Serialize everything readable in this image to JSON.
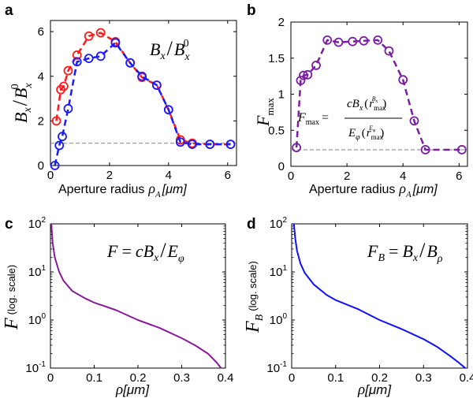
{
  "chart_data": [
    {
      "panel": "a",
      "type": "line",
      "title": "B_x / B_x^0",
      "xlabel": "Aperture radius ρ_A [μm]",
      "ylabel": "B_x / B_x^0",
      "xlim": [
        0,
        6.3
      ],
      "ylim": [
        0,
        6.5
      ],
      "xticks": [
        "0",
        "2",
        "4",
        "6"
      ],
      "xtick_values": [
        0,
        2,
        4,
        6
      ],
      "yticks": [
        "0",
        "2",
        "4",
        "6"
      ],
      "ytick_values": [
        0,
        2,
        4,
        6
      ],
      "reference_line": {
        "y": 1.0,
        "style": "dashed",
        "color": "#808080"
      },
      "series": [
        {
          "name": "red",
          "color": "#ff1a1a",
          "x": [
            0.2,
            0.35,
            0.45,
            0.6,
            0.9,
            1.3,
            1.7,
            2.2,
            2.7,
            3.1,
            3.6,
            4.0,
            4.4,
            4.8,
            5.4,
            6.1
          ],
          "y": [
            2.0,
            3.4,
            3.55,
            4.25,
            4.95,
            5.8,
            5.95,
            5.55,
            4.6,
            3.95,
            3.6,
            2.5,
            1.15,
            1.0,
            0.95,
            0.95
          ]
        },
        {
          "name": "blue",
          "color": "#1a1aff",
          "x": [
            0.15,
            0.3,
            0.4,
            0.6,
            0.9,
            1.3,
            1.7,
            2.2,
            2.7,
            3.1,
            3.6,
            4.0,
            4.4,
            4.8,
            5.4,
            6.1
          ],
          "y": [
            0.0,
            0.9,
            1.3,
            2.55,
            4.65,
            4.8,
            4.9,
            5.5,
            4.6,
            4.0,
            3.6,
            2.5,
            1.05,
            0.95,
            0.95,
            0.95
          ]
        }
      ]
    },
    {
      "panel": "b",
      "type": "line",
      "ylabel": "F_max",
      "xlabel": "Aperture radius ρ_A [μm]",
      "formula": "F_max = c B_x(r_max^{B_x}) / E_φ(r_max^{E_φ})",
      "xlim": [
        0,
        6.3
      ],
      "ylim": [
        0,
        2
      ],
      "xticks": [
        "0",
        "2",
        "4",
        "6"
      ],
      "xtick_values": [
        0,
        2,
        4,
        6
      ],
      "yticks": [
        "0",
        "0.5",
        "1",
        "1.5",
        "2"
      ],
      "ytick_values": [
        0,
        0.5,
        1,
        1.5,
        2
      ],
      "reference_line": {
        "y": 0.23,
        "style": "dashed",
        "color": "#808080"
      },
      "series": [
        {
          "name": "F_max",
          "color": "#7a1fa2",
          "x": [
            0.2,
            0.35,
            0.45,
            0.6,
            0.9,
            1.3,
            1.7,
            2.2,
            2.6,
            3.1,
            3.5,
            4.0,
            4.4,
            4.8,
            6.1
          ],
          "y": [
            0.26,
            1.19,
            1.26,
            1.27,
            1.4,
            1.75,
            1.72,
            1.73,
            1.74,
            1.75,
            1.6,
            1.2,
            0.63,
            0.23,
            0.23
          ]
        }
      ]
    },
    {
      "panel": "c",
      "type": "line",
      "title": "F = c B_x / E_φ",
      "xlabel": "ρ[μm]",
      "ylabel": "F (log. scale)",
      "yscale": "log",
      "xlim": [
        0,
        0.4
      ],
      "ylim": [
        0.1,
        100
      ],
      "xticks": [
        "0",
        "0.1",
        "0.2",
        "0.3",
        "0.4"
      ],
      "xtick_values": [
        0,
        0.1,
        0.2,
        0.3,
        0.4
      ],
      "yticks_base": [
        "10",
        "10",
        "10",
        "10"
      ],
      "yticks_exp": [
        "-1",
        "0",
        "1",
        "2"
      ],
      "ytick_values": [
        0.1,
        1,
        10,
        100
      ],
      "series": [
        {
          "name": "F",
          "color": "#8a1a9a",
          "x": [
            0.002,
            0.005,
            0.01,
            0.02,
            0.03,
            0.05,
            0.08,
            0.1,
            0.15,
            0.2,
            0.25,
            0.3,
            0.33,
            0.36,
            0.38,
            0.39
          ],
          "y": [
            100,
            40,
            20,
            10,
            6.5,
            4.0,
            2.8,
            2.3,
            1.6,
            1.0,
            0.68,
            0.42,
            0.3,
            0.2,
            0.13,
            0.1
          ]
        }
      ]
    },
    {
      "panel": "d",
      "type": "line",
      "title": "F_B = B_x / B_ρ",
      "xlabel": "ρ[μm]",
      "ylabel": "F_B (log. scale)",
      "yscale": "log",
      "xlim": [
        0,
        0.4
      ],
      "ylim": [
        0.1,
        100
      ],
      "xticks": [
        "0",
        "0.1",
        "0.2",
        "0.3",
        "0.4"
      ],
      "xtick_values": [
        0,
        0.1,
        0.2,
        0.3,
        0.4
      ],
      "yticks_base": [
        "10",
        "10",
        "10",
        "10"
      ],
      "yticks_exp": [
        "-1",
        "0",
        "1",
        "2"
      ],
      "ytick_values": [
        0.1,
        1,
        10,
        100
      ],
      "series": [
        {
          "name": "F_B",
          "color": "#1010ff",
          "x": [
            0.005,
            0.008,
            0.012,
            0.02,
            0.03,
            0.05,
            0.08,
            0.1,
            0.15,
            0.2,
            0.25,
            0.3,
            0.33,
            0.36,
            0.38,
            0.395
          ],
          "y": [
            100,
            50,
            28,
            15,
            9.5,
            5.5,
            3.3,
            2.6,
            1.7,
            1.0,
            0.65,
            0.4,
            0.28,
            0.18,
            0.13,
            0.1
          ]
        }
      ]
    }
  ],
  "labels": {
    "panel_a": "a",
    "panel_b": "b",
    "panel_c": "c",
    "panel_d": "d",
    "aperture": "Aperture radius",
    "rho": "ρ",
    "rho_a_sub": "A",
    "um_unit": "[μm]",
    "B": "B",
    "x": "x",
    "zero": "0",
    "slash": "/",
    "F": "F",
    "max": "max",
    "eq": "=",
    "c": "c",
    "E": "E",
    "phi": "φ",
    "r": "r",
    "B_rho": "ρ",
    "log_scale": "(log. scale)",
    "F_B_sub": "B"
  }
}
